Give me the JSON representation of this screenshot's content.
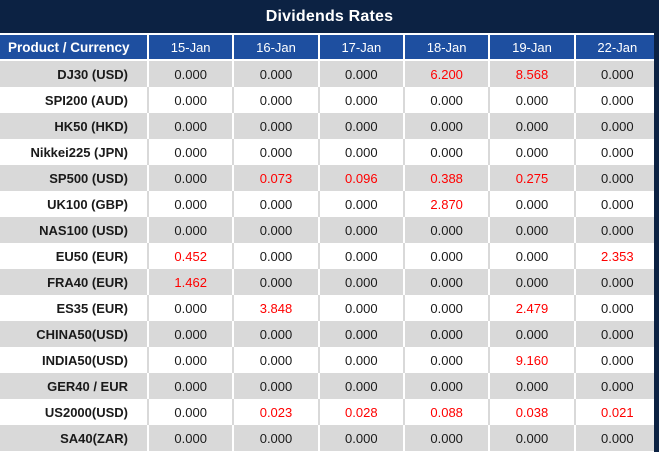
{
  "title": "Dividends Rates",
  "colors": {
    "title_bg": "#0c2243",
    "header_bg": "#1e4fa0",
    "stripe_grey": "#d9d9d9",
    "row_white": "#ffffff",
    "header_text": "#ffffff",
    "value_text": "#1a1a1a",
    "value_red": "#ff0000"
  },
  "table": {
    "product_header": "Product / Currency",
    "date_headers": [
      "15-Jan",
      "16-Jan",
      "17-Jan",
      "18-Jan",
      "19-Jan",
      "22-Jan"
    ],
    "rows": [
      {
        "product": "DJ30 (USD)",
        "values": [
          "0.000",
          "0.000",
          "0.000",
          "6.200",
          "8.568",
          "0.000"
        ],
        "red": [
          3,
          4
        ]
      },
      {
        "product": "SPI200 (AUD)",
        "values": [
          "0.000",
          "0.000",
          "0.000",
          "0.000",
          "0.000",
          "0.000"
        ],
        "red": []
      },
      {
        "product": "HK50 (HKD)",
        "values": [
          "0.000",
          "0.000",
          "0.000",
          "0.000",
          "0.000",
          "0.000"
        ],
        "red": []
      },
      {
        "product": "Nikkei225 (JPN)",
        "values": [
          "0.000",
          "0.000",
          "0.000",
          "0.000",
          "0.000",
          "0.000"
        ],
        "red": []
      },
      {
        "product": "SP500 (USD)",
        "values": [
          "0.000",
          "0.073",
          "0.096",
          "0.388",
          "0.275",
          "0.000"
        ],
        "red": [
          1,
          2,
          3,
          4
        ]
      },
      {
        "product": "UK100 (GBP)",
        "values": [
          "0.000",
          "0.000",
          "0.000",
          "2.870",
          "0.000",
          "0.000"
        ],
        "red": [
          3
        ]
      },
      {
        "product": "NAS100 (USD)",
        "values": [
          "0.000",
          "0.000",
          "0.000",
          "0.000",
          "0.000",
          "0.000"
        ],
        "red": []
      },
      {
        "product": "EU50 (EUR)",
        "values": [
          "0.452",
          "0.000",
          "0.000",
          "0.000",
          "0.000",
          "2.353"
        ],
        "red": [
          0,
          5
        ]
      },
      {
        "product": "FRA40 (EUR)",
        "values": [
          "1.462",
          "0.000",
          "0.000",
          "0.000",
          "0.000",
          "0.000"
        ],
        "red": [
          0
        ]
      },
      {
        "product": "ES35 (EUR)",
        "values": [
          "0.000",
          "3.848",
          "0.000",
          "0.000",
          "2.479",
          "0.000"
        ],
        "red": [
          1,
          4
        ]
      },
      {
        "product": "CHINA50(USD)",
        "values": [
          "0.000",
          "0.000",
          "0.000",
          "0.000",
          "0.000",
          "0.000"
        ],
        "red": []
      },
      {
        "product": "INDIA50(USD)",
        "values": [
          "0.000",
          "0.000",
          "0.000",
          "0.000",
          "9.160",
          "0.000"
        ],
        "red": [
          4
        ]
      },
      {
        "product": "GER40 / EUR",
        "values": [
          "0.000",
          "0.000",
          "0.000",
          "0.000",
          "0.000",
          "0.000"
        ],
        "red": []
      },
      {
        "product": "US2000(USD)",
        "values": [
          "0.000",
          "0.023",
          "0.028",
          "0.088",
          "0.038",
          "0.021"
        ],
        "red": [
          1,
          2,
          3,
          4,
          5
        ]
      },
      {
        "product": "SA40(ZAR)",
        "values": [
          "0.000",
          "0.000",
          "0.000",
          "0.000",
          "0.000",
          "0.000"
        ],
        "red": []
      }
    ]
  },
  "chart_data": {
    "type": "table",
    "title": "Dividends Rates",
    "columns": [
      "Product / Currency",
      "15-Jan",
      "16-Jan",
      "17-Jan",
      "18-Jan",
      "19-Jan",
      "22-Jan"
    ],
    "rows": [
      [
        "DJ30 (USD)",
        0.0,
        0.0,
        0.0,
        6.2,
        8.568,
        0.0
      ],
      [
        "SPI200 (AUD)",
        0.0,
        0.0,
        0.0,
        0.0,
        0.0,
        0.0
      ],
      [
        "HK50 (HKD)",
        0.0,
        0.0,
        0.0,
        0.0,
        0.0,
        0.0
      ],
      [
        "Nikkei225 (JPN)",
        0.0,
        0.0,
        0.0,
        0.0,
        0.0,
        0.0
      ],
      [
        "SP500 (USD)",
        0.0,
        0.073,
        0.096,
        0.388,
        0.275,
        0.0
      ],
      [
        "UK100 (GBP)",
        0.0,
        0.0,
        0.0,
        2.87,
        0.0,
        0.0
      ],
      [
        "NAS100 (USD)",
        0.0,
        0.0,
        0.0,
        0.0,
        0.0,
        0.0
      ],
      [
        "EU50 (EUR)",
        0.452,
        0.0,
        0.0,
        0.0,
        0.0,
        2.353
      ],
      [
        "FRA40 (EUR)",
        1.462,
        0.0,
        0.0,
        0.0,
        0.0,
        0.0
      ],
      [
        "ES35 (EUR)",
        0.0,
        3.848,
        0.0,
        0.0,
        2.479,
        0.0
      ],
      [
        "CHINA50(USD)",
        0.0,
        0.0,
        0.0,
        0.0,
        0.0,
        0.0
      ],
      [
        "INDIA50(USD)",
        0.0,
        0.0,
        0.0,
        0.0,
        9.16,
        0.0
      ],
      [
        "GER40 / EUR",
        0.0,
        0.0,
        0.0,
        0.0,
        0.0,
        0.0
      ],
      [
        "US2000(USD)",
        0.0,
        0.023,
        0.028,
        0.088,
        0.038,
        0.021
      ],
      [
        "SA40(ZAR)",
        0.0,
        0.0,
        0.0,
        0.0,
        0.0,
        0.0
      ]
    ]
  }
}
